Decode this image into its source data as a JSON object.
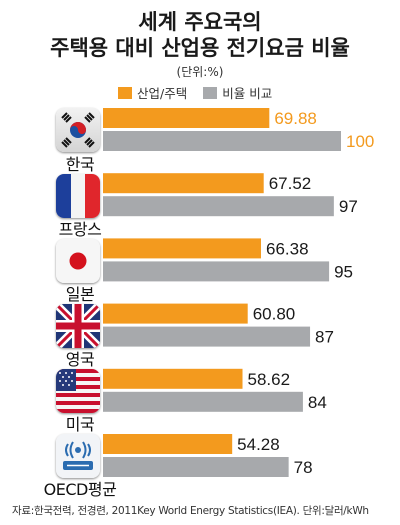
{
  "title_line1": "세계 주요국의",
  "title_line2": "주택용 대비 산업용 전기요금 비율",
  "unit": "(단위:%)",
  "source": "자료:한국전력, 전경련, 2011Key World Energy Statistics(IEA).   단위:달러/kWh",
  "colors": {
    "industry": "#F39A1E",
    "compare": "#A7A9AC",
    "highlight": "#F39A1E",
    "label": "#1a1a1a"
  },
  "chart_data": {
    "type": "bar",
    "orientation": "horizontal",
    "categories": [
      "한국",
      "프랑스",
      "일본",
      "영국",
      "미국",
      "OECD평균"
    ],
    "flag_icons": [
      "korea-flag-icon",
      "france-flag-icon",
      "japan-flag-icon",
      "uk-flag-icon",
      "usa-flag-icon",
      "oecd-logo-icon"
    ],
    "series": [
      {
        "name": "산업/주택",
        "values": [
          69.88,
          67.52,
          66.38,
          60.8,
          58.62,
          54.28
        ],
        "labels": [
          "69.88",
          "67.52",
          "66.38",
          "60.80",
          "58.62",
          "54.28"
        ]
      },
      {
        "name": "비율 비교",
        "values": [
          100,
          97,
          95,
          87,
          84,
          78
        ],
        "labels": [
          "100",
          "97",
          "95",
          "87",
          "84",
          "78"
        ]
      }
    ],
    "xlim": [
      0,
      100
    ],
    "grid": false,
    "legend": "top"
  }
}
